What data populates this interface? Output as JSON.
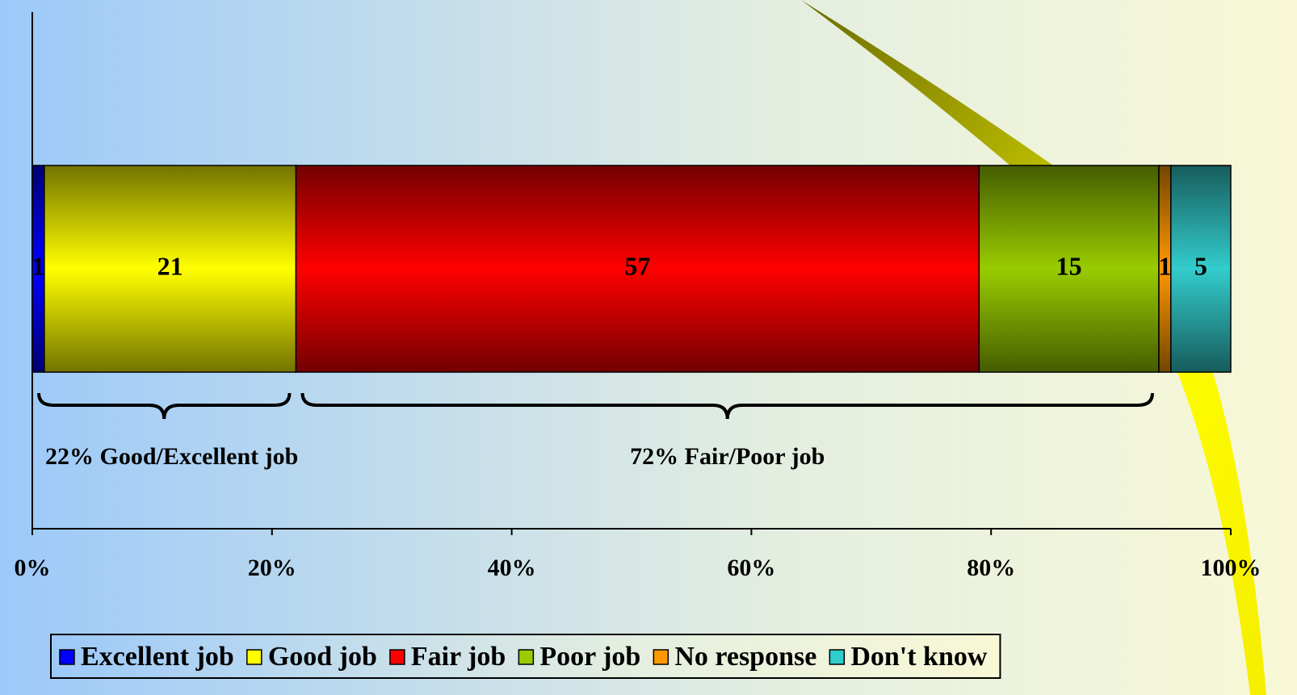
{
  "chart_data": {
    "type": "stacked-bar-horizontal",
    "series": [
      {
        "name": "Excellent job",
        "color": "#0000ff",
        "values": [
          1
        ]
      },
      {
        "name": "Good job",
        "color": "#ffff00",
        "values": [
          21
        ]
      },
      {
        "name": "Fair job",
        "color": "#ff0000",
        "values": [
          57
        ]
      },
      {
        "name": "Poor job",
        "color": "#99cc00",
        "values": [
          15
        ]
      },
      {
        "name": "No response",
        "color": "#ff9900",
        "values": [
          1
        ]
      },
      {
        "name": "Don't know",
        "color": "#33cccc",
        "values": [
          5
        ]
      }
    ],
    "xlim": [
      0,
      100
    ],
    "xticks": [
      {
        "value": 0,
        "label": "0%"
      },
      {
        "value": 20,
        "label": "20%"
      },
      {
        "value": 40,
        "label": "40%"
      },
      {
        "value": 60,
        "label": "60%"
      },
      {
        "value": 80,
        "label": "80%"
      },
      {
        "value": 100,
        "label": "100%"
      }
    ],
    "annotations": [
      "22% Good/Excellent job",
      "72% Fair/Poor job"
    ],
    "legend": "bottom"
  }
}
